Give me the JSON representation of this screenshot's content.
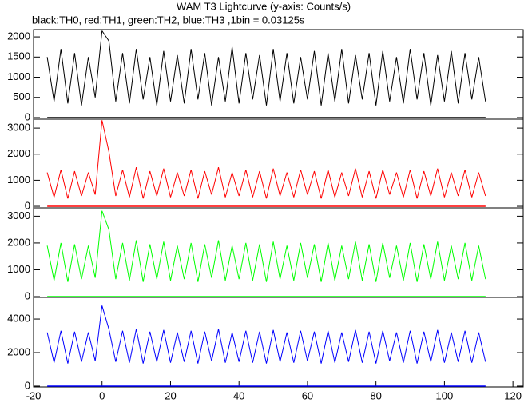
{
  "chart_data": [
    {
      "type": "line",
      "title": "WAM T3 Lightcurve (y-axis: Counts/s)",
      "subtitle": "black:TH0, red:TH1, green:TH2, blue:TH3 ,1bin = 0.03125s",
      "x": [
        -16,
        -14,
        -12,
        -10,
        -8,
        -6,
        -4,
        -2,
        0,
        2,
        4,
        6,
        8,
        10,
        12,
        14,
        16,
        18,
        20,
        22,
        24,
        26,
        28,
        30,
        32,
        34,
        36,
        38,
        40,
        42,
        44,
        46,
        48,
        50,
        52,
        54,
        56,
        58,
        60,
        62,
        64,
        66,
        68,
        70,
        72,
        74,
        76,
        78,
        80,
        82,
        84,
        86,
        88,
        90,
        92,
        94,
        96,
        98,
        100,
        102,
        104,
        106,
        108,
        110,
        112
      ],
      "series": [
        {
          "name": "TH0",
          "color": "#000000",
          "values": [
            1500,
            400,
            1700,
            350,
            1600,
            300,
            1500,
            500,
            2150,
            1900,
            400,
            1600,
            350,
            1700,
            450,
            1500,
            300,
            1650,
            400,
            1550,
            350,
            1700,
            450,
            1600,
            300,
            1500,
            400,
            1750,
            350,
            1600,
            450,
            1550,
            300,
            1700,
            400,
            1600,
            350,
            1500,
            450,
            1650,
            300,
            1600,
            400,
            1700,
            350,
            1550,
            450,
            1600,
            300,
            1650,
            400,
            1500,
            350,
            1700,
            450,
            1600,
            300,
            1550,
            400,
            1650,
            350,
            1600,
            450,
            1500,
            400
          ]
        }
      ],
      "xlim": [
        -20,
        123
      ],
      "ylim": [
        -40,
        2180
      ],
      "yticks": [
        0,
        500,
        1000,
        1500,
        2000
      ]
    },
    {
      "type": "line",
      "x": [
        -16,
        -14,
        -12,
        -10,
        -8,
        -6,
        -4,
        -2,
        0,
        2,
        4,
        6,
        8,
        10,
        12,
        14,
        16,
        18,
        20,
        22,
        24,
        26,
        28,
        30,
        32,
        34,
        36,
        38,
        40,
        42,
        44,
        46,
        48,
        50,
        52,
        54,
        56,
        58,
        60,
        62,
        64,
        66,
        68,
        70,
        72,
        74,
        76,
        78,
        80,
        82,
        84,
        86,
        88,
        90,
        92,
        94,
        96,
        98,
        100,
        102,
        104,
        106,
        108,
        110,
        112
      ],
      "series": [
        {
          "name": "TH1",
          "color": "#ff0000",
          "values": [
            1300,
            350,
            1400,
            300,
            1350,
            400,
            1300,
            450,
            3300,
            2100,
            400,
            1400,
            350,
            1500,
            300,
            1350,
            400,
            1450,
            350,
            1300,
            400,
            1400,
            300,
            1350,
            450,
            1500,
            350,
            1300,
            400,
            1400,
            350,
            1350,
            300,
            1450,
            400,
            1300,
            350,
            1400,
            450,
            1350,
            300,
            1400,
            350,
            1300,
            400,
            1450,
            350,
            1350,
            300,
            1400,
            450,
            1300,
            350,
            1400,
            300,
            1350,
            400,
            1450,
            350,
            1300,
            400,
            1400,
            350,
            1300,
            400
          ]
        }
      ],
      "xlim": [
        -20,
        123
      ],
      "ylim": [
        -60,
        3340
      ],
      "yticks": [
        0,
        1000,
        2000,
        3000
      ]
    },
    {
      "type": "line",
      "x": [
        -16,
        -14,
        -12,
        -10,
        -8,
        -6,
        -4,
        -2,
        0,
        2,
        4,
        6,
        8,
        10,
        12,
        14,
        16,
        18,
        20,
        22,
        24,
        26,
        28,
        30,
        32,
        34,
        36,
        38,
        40,
        42,
        44,
        46,
        48,
        50,
        52,
        54,
        56,
        58,
        60,
        62,
        64,
        66,
        68,
        70,
        72,
        74,
        76,
        78,
        80,
        82,
        84,
        86,
        88,
        90,
        92,
        94,
        96,
        98,
        100,
        102,
        104,
        106,
        108,
        110,
        112
      ],
      "series": [
        {
          "name": "TH2",
          "color": "#00ff00",
          "values": [
            1900,
            600,
            2000,
            550,
            1950,
            650,
            1900,
            700,
            3200,
            2500,
            650,
            2000,
            600,
            2100,
            550,
            1950,
            650,
            2050,
            600,
            1900,
            650,
            2000,
            550,
            1950,
            700,
            2100,
            600,
            1900,
            650,
            2000,
            600,
            1950,
            550,
            2050,
            650,
            1900,
            600,
            2000,
            700,
            1950,
            550,
            2000,
            600,
            1900,
            650,
            2050,
            600,
            1950,
            550,
            2000,
            700,
            1900,
            600,
            2000,
            550,
            1950,
            650,
            2050,
            600,
            1900,
            650,
            2000,
            600,
            1900,
            650
          ]
        }
      ],
      "xlim": [
        -20,
        123
      ],
      "ylim": [
        -30,
        3310
      ],
      "yticks": [
        0,
        1000,
        2000,
        3000
      ]
    },
    {
      "type": "line",
      "x": [
        -16,
        -14,
        -12,
        -10,
        -8,
        -6,
        -4,
        -2,
        0,
        2,
        4,
        6,
        8,
        10,
        12,
        14,
        16,
        18,
        20,
        22,
        24,
        26,
        28,
        30,
        32,
        34,
        36,
        38,
        40,
        42,
        44,
        46,
        48,
        50,
        52,
        54,
        56,
        58,
        60,
        62,
        64,
        66,
        68,
        70,
        72,
        74,
        76,
        78,
        80,
        82,
        84,
        86,
        88,
        90,
        92,
        94,
        96,
        98,
        100,
        102,
        104,
        106,
        108,
        110,
        112
      ],
      "series": [
        {
          "name": "TH3",
          "color": "#0000ff",
          "values": [
            3200,
            1400,
            3300,
            1350,
            3250,
            1450,
            3200,
            1500,
            4800,
            3400,
            1450,
            3300,
            1400,
            3400,
            1350,
            3250,
            1450,
            3350,
            1400,
            3200,
            1450,
            3300,
            1350,
            3250,
            1500,
            3400,
            1400,
            3200,
            1450,
            3300,
            1400,
            3250,
            1350,
            3350,
            1450,
            3200,
            1400,
            3300,
            1500,
            3250,
            1350,
            3300,
            1400,
            3200,
            1450,
            3350,
            1400,
            3250,
            1350,
            3300,
            1500,
            3200,
            1400,
            3300,
            1350,
            3250,
            1450,
            3350,
            1400,
            3200,
            1450,
            3300,
            1400,
            3200,
            1450
          ]
        }
      ],
      "xlim": [
        -20,
        123
      ],
      "ylim": [
        -50,
        5290
      ],
      "yticks": [
        0,
        2000,
        4000
      ],
      "xticks": [
        -20,
        0,
        20,
        40,
        60,
        80,
        100,
        120
      ]
    }
  ]
}
